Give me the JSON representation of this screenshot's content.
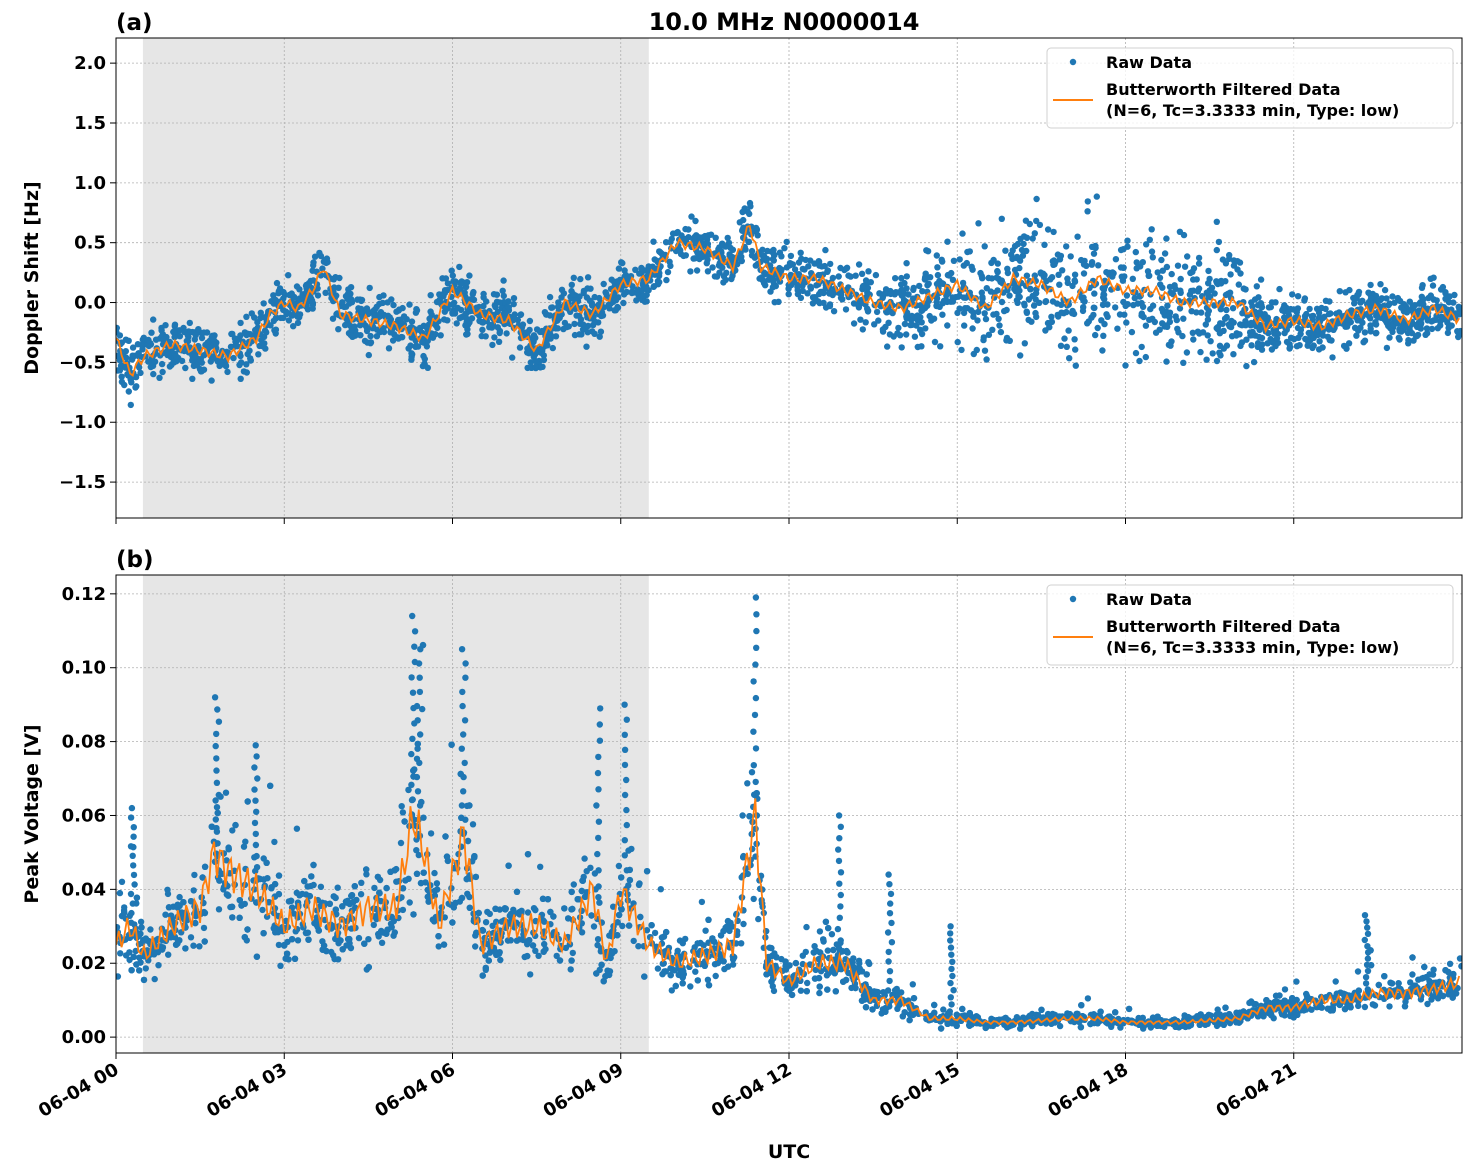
{
  "title": "10.0 MHz N0000014",
  "colors": {
    "raw": "#1f77b4",
    "filtered": "#ff7f0e",
    "shade": "#e6e6e6"
  },
  "chart_data": [
    {
      "type": "scatter",
      "panel_label": "(a)",
      "ylabel": "Doppler Shift [Hz]",
      "xlabel": "",
      "xlim_hours": [
        0,
        24
      ],
      "ylim": [
        -1.8,
        2.21
      ],
      "yticks": [
        -1.5,
        -1.0,
        -0.5,
        0.0,
        0.5,
        1.0,
        1.5,
        2.0
      ],
      "ytick_labels": [
        "−1.5",
        "−1.0",
        "−0.5",
        "0.0",
        "0.5",
        "1.0",
        "1.5",
        "2.0"
      ],
      "grid": true,
      "shaded_interval_hours": [
        0.48,
        9.5
      ],
      "legend": {
        "position": "top-right",
        "entries": [
          "Raw Data",
          "Butterworth Filtered Data",
          "(N=6, Tc=3.3333 min, Type: low)"
        ]
      },
      "filtered": {
        "x": [
          0,
          0.25,
          0.5,
          1,
          1.5,
          2,
          2.5,
          2.75,
          3,
          3.25,
          3.5,
          3.7,
          4,
          4.5,
          5,
          5.5,
          6,
          6.5,
          7,
          7.5,
          8,
          8.5,
          9,
          9.5,
          10,
          10.5,
          11,
          11.3,
          11.5,
          12,
          12.5,
          13,
          13.5,
          14,
          14.5,
          15,
          15.5,
          16,
          16.5,
          17,
          17.5,
          18,
          18.5,
          19,
          19.5,
          20,
          20.5,
          21,
          21.5,
          22,
          22.5,
          23,
          23.5,
          24
        ],
        "y": [
          -0.3,
          -0.6,
          -0.45,
          -0.35,
          -0.4,
          -0.45,
          -0.3,
          -0.1,
          0.0,
          -0.05,
          0.1,
          0.3,
          -0.1,
          -0.15,
          -0.2,
          -0.3,
          0.1,
          -0.1,
          -0.15,
          -0.4,
          0.0,
          -0.1,
          0.15,
          0.2,
          0.5,
          0.45,
          0.3,
          0.65,
          0.3,
          0.2,
          0.2,
          0.1,
          0.0,
          -0.05,
          0.05,
          0.15,
          -0.05,
          0.2,
          0.15,
          0.0,
          0.2,
          0.1,
          0.1,
          0.0,
          0.0,
          0.0,
          -0.2,
          -0.15,
          -0.2,
          -0.1,
          -0.05,
          -0.15,
          -0.05,
          -0.15
        ]
      },
      "raw_spread": {
        "x": [
          0,
          9,
          10,
          13,
          14,
          15,
          15.5,
          20,
          20.5,
          24
        ],
        "half_width": [
          0.4,
          0.4,
          0.35,
          0.4,
          0.6,
          0.8,
          0.9,
          0.9,
          0.45,
          0.4
        ]
      }
    },
    {
      "type": "scatter",
      "panel_label": "(b)",
      "ylabel": "Peak Voltage [V]",
      "xlabel": "UTC",
      "xlim_hours": [
        0,
        24
      ],
      "ylim": [
        -0.0043,
        0.1251
      ],
      "yticks": [
        0.0,
        0.02,
        0.04,
        0.06,
        0.08,
        0.1,
        0.12
      ],
      "ytick_labels": [
        "0.00",
        "0.02",
        "0.04",
        "0.06",
        "0.08",
        "0.10",
        "0.12"
      ],
      "xtick_hours": [
        0,
        3,
        6,
        9,
        12,
        15,
        18,
        21
      ],
      "xtick_labels": [
        "06-04 00",
        "06-04 03",
        "06-04 06",
        "06-04 09",
        "06-04 12",
        "06-04 15",
        "06-04 18",
        "06-04 21"
      ],
      "grid": true,
      "shaded_interval_hours": [
        0.48,
        9.5
      ],
      "legend": {
        "position": "top-right",
        "entries": [
          "Raw Data",
          "Butterworth Filtered Data",
          "(N=6, Tc=3.3333 min, Type: low)"
        ]
      },
      "filtered": {
        "x": [
          0,
          0.25,
          0.5,
          1,
          1.5,
          1.75,
          2,
          2.5,
          3,
          3.5,
          4,
          4.5,
          5,
          5.3,
          5.5,
          5.75,
          6.2,
          6.5,
          7,
          7.5,
          8,
          8.5,
          8.75,
          9,
          9.5,
          10,
          10.5,
          11,
          11.4,
          11.6,
          12,
          12.5,
          13,
          13.5,
          14,
          14.5,
          15,
          15.5,
          16,
          17,
          17.5,
          18,
          19,
          20,
          20.5,
          21,
          21.5,
          22,
          22.5,
          23,
          23.5,
          24
        ],
        "y": [
          0.025,
          0.03,
          0.022,
          0.03,
          0.035,
          0.05,
          0.045,
          0.04,
          0.03,
          0.035,
          0.03,
          0.035,
          0.035,
          0.06,
          0.05,
          0.03,
          0.055,
          0.025,
          0.03,
          0.03,
          0.025,
          0.04,
          0.02,
          0.04,
          0.025,
          0.02,
          0.022,
          0.025,
          0.06,
          0.02,
          0.015,
          0.02,
          0.02,
          0.01,
          0.01,
          0.005,
          0.005,
          0.004,
          0.004,
          0.005,
          0.005,
          0.004,
          0.004,
          0.005,
          0.008,
          0.008,
          0.01,
          0.01,
          0.012,
          0.012,
          0.013,
          0.015
        ]
      },
      "raw_peaks": {
        "x": [
          0.3,
          1.8,
          2.5,
          5.3,
          5.4,
          6.2,
          8.6,
          9.1,
          11.4,
          12.9,
          13.8,
          14.9,
          22.3
        ],
        "y": [
          0.062,
          0.092,
          0.079,
          0.114,
          0.105,
          0.105,
          0.089,
          0.09,
          0.119,
          0.06,
          0.044,
          0.03,
          0.033
        ]
      }
    }
  ]
}
